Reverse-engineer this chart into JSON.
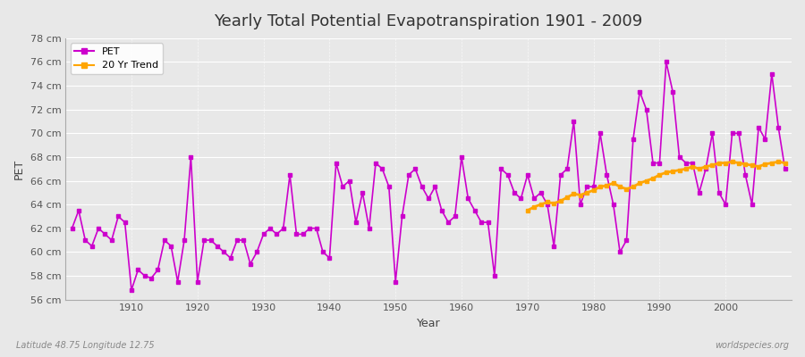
{
  "title": "Yearly Total Potential Evapotranspiration 1901 - 2009",
  "xlabel": "Year",
  "ylabel": "PET",
  "subtitle": "Latitude 48.75 Longitude 12.75",
  "watermark": "worldspecies.org",
  "background_color": "#e8e8e8",
  "plot_bg_color": "#e8e8e8",
  "pet_color": "#cc00cc",
  "trend_color": "#ffa500",
  "ylim": [
    56,
    78
  ],
  "yticks": [
    56,
    58,
    60,
    62,
    64,
    66,
    68,
    70,
    72,
    74,
    76,
    78
  ],
  "years": [
    1901,
    1902,
    1903,
    1904,
    1905,
    1906,
    1907,
    1908,
    1909,
    1910,
    1911,
    1912,
    1913,
    1914,
    1915,
    1916,
    1917,
    1918,
    1919,
    1920,
    1921,
    1922,
    1923,
    1924,
    1925,
    1926,
    1927,
    1928,
    1929,
    1930,
    1931,
    1932,
    1933,
    1934,
    1935,
    1936,
    1937,
    1938,
    1939,
    1940,
    1941,
    1942,
    1943,
    1944,
    1945,
    1946,
    1947,
    1948,
    1949,
    1950,
    1951,
    1952,
    1953,
    1954,
    1955,
    1956,
    1957,
    1958,
    1959,
    1960,
    1961,
    1962,
    1963,
    1964,
    1965,
    1966,
    1967,
    1968,
    1969,
    1970,
    1971,
    1972,
    1973,
    1974,
    1975,
    1976,
    1977,
    1978,
    1979,
    1980,
    1981,
    1982,
    1983,
    1984,
    1985,
    1986,
    1987,
    1988,
    1989,
    1990,
    1991,
    1992,
    1993,
    1994,
    1995,
    1996,
    1997,
    1998,
    1999,
    2000,
    2001,
    2002,
    2003,
    2004,
    2005,
    2006,
    2007,
    2008,
    2009
  ],
  "pet_values": [
    62.0,
    63.5,
    61.0,
    60.5,
    62.0,
    61.5,
    61.0,
    63.0,
    62.5,
    56.8,
    58.5,
    58.0,
    57.8,
    58.5,
    61.0,
    60.5,
    57.5,
    61.0,
    68.0,
    57.5,
    61.0,
    61.0,
    60.5,
    60.0,
    59.5,
    61.0,
    61.0,
    59.0,
    60.0,
    61.5,
    62.0,
    61.5,
    62.0,
    66.5,
    61.5,
    61.5,
    62.0,
    62.0,
    60.0,
    59.5,
    67.5,
    65.5,
    66.0,
    62.5,
    65.0,
    62.0,
    67.5,
    67.0,
    65.5,
    57.5,
    63.0,
    66.5,
    67.0,
    65.5,
    64.5,
    65.5,
    63.5,
    62.5,
    63.0,
    68.0,
    64.5,
    63.5,
    62.5,
    62.5,
    58.0,
    67.0,
    66.5,
    65.0,
    64.5,
    66.5,
    64.5,
    65.0,
    64.0,
    60.5,
    66.5,
    67.0,
    71.0,
    64.0,
    65.5,
    65.5,
    70.0,
    66.5,
    64.0,
    60.0,
    61.0,
    69.5,
    73.5,
    72.0,
    67.5,
    67.5,
    76.0,
    73.5,
    68.0,
    67.5,
    67.5,
    65.0,
    67.0,
    70.0,
    65.0,
    64.0,
    70.0,
    70.0,
    66.5,
    64.0,
    70.5,
    69.5,
    75.0,
    70.5,
    67.0
  ],
  "trend_years": [
    1970,
    1971,
    1972,
    1973,
    1974,
    1975,
    1976,
    1977,
    1978,
    1979,
    1980,
    1981,
    1982,
    1983,
    1984,
    1985,
    1986,
    1987,
    1988,
    1989,
    1990,
    1991,
    1992,
    1993,
    1994,
    1995,
    1996,
    1997,
    1998,
    1999,
    2000,
    2001,
    2002,
    2003,
    2004,
    2005,
    2006,
    2007,
    2008,
    2009
  ],
  "trend_values": [
    63.5,
    63.8,
    64.0,
    64.2,
    64.1,
    64.3,
    64.6,
    64.9,
    64.8,
    65.0,
    65.2,
    65.5,
    65.6,
    65.8,
    65.5,
    65.3,
    65.5,
    65.8,
    66.0,
    66.2,
    66.5,
    66.7,
    66.8,
    66.9,
    67.0,
    67.2,
    67.0,
    67.2,
    67.3,
    67.5,
    67.5,
    67.6,
    67.5,
    67.4,
    67.3,
    67.2,
    67.4,
    67.5,
    67.6,
    67.5
  ]
}
